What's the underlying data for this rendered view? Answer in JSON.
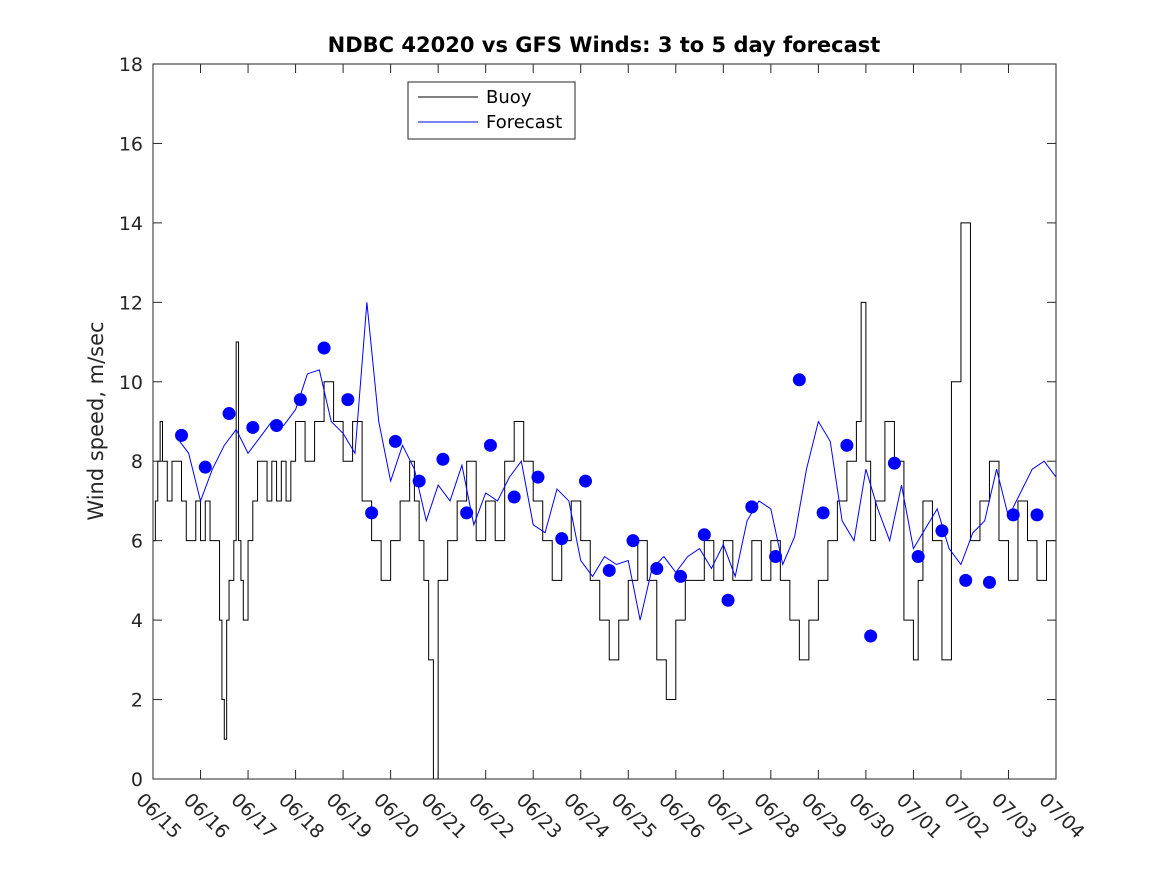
{
  "chart_data": {
    "type": "line",
    "title": "NDBC 42020 vs GFS Winds: 3 to 5 day forecast",
    "xlabel": "",
    "ylabel": "Wind speed, m/sec",
    "x_unit": "date (MM/DD)",
    "xlim": [
      "06/15",
      "07/04"
    ],
    "ylim": [
      0,
      18
    ],
    "x_ticks": [
      "06/15",
      "06/16",
      "06/17",
      "06/18",
      "06/19",
      "06/20",
      "06/21",
      "06/22",
      "06/23",
      "06/24",
      "06/25",
      "06/26",
      "06/27",
      "06/28",
      "06/29",
      "06/30",
      "07/01",
      "07/02",
      "07/03",
      "07/04"
    ],
    "y_ticks": [
      "0",
      "2",
      "4",
      "6",
      "8",
      "10",
      "12",
      "14",
      "16",
      "18"
    ],
    "grid": false,
    "legend_position": "top-center",
    "series": [
      {
        "name": "Buoy",
        "color": "#000000",
        "x_day": [
          0.0,
          0.05,
          0.1,
          0.15,
          0.2,
          0.3,
          0.4,
          0.5,
          0.6,
          0.7,
          0.8,
          0.9,
          1.0,
          1.1,
          1.2,
          1.3,
          1.4,
          1.45,
          1.5,
          1.55,
          1.6,
          1.7,
          1.75,
          1.8,
          1.85,
          1.9,
          2.0,
          2.1,
          2.2,
          2.3,
          2.4,
          2.5,
          2.6,
          2.7,
          2.8,
          2.9,
          3.0,
          3.2,
          3.4,
          3.6,
          3.8,
          4.0,
          4.2,
          4.4,
          4.6,
          4.8,
          5.0,
          5.2,
          5.4,
          5.5,
          5.6,
          5.7,
          5.8,
          5.9,
          6.0,
          6.2,
          6.4,
          6.6,
          6.8,
          7.0,
          7.2,
          7.4,
          7.6,
          7.8,
          8.0,
          8.2,
          8.4,
          8.6,
          8.8,
          9.0,
          9.2,
          9.4,
          9.6,
          9.8,
          10.0,
          10.2,
          10.4,
          10.6,
          10.8,
          11.0,
          11.2,
          11.4,
          11.6,
          11.8,
          12.0,
          12.2,
          12.4,
          12.6,
          12.8,
          13.0,
          13.2,
          13.4,
          13.6,
          13.8,
          14.0,
          14.2,
          14.4,
          14.6,
          14.8,
          14.9,
          15.0,
          15.1,
          15.2,
          15.4,
          15.6,
          15.8,
          16.0,
          16.1,
          16.2,
          16.4,
          16.6,
          16.8,
          17.0,
          17.2,
          17.4,
          17.6,
          17.8,
          18.0,
          18.2,
          18.4,
          18.6,
          18.8,
          19.0
        ],
        "y": [
          6,
          7,
          8,
          9,
          8,
          7,
          8,
          8,
          7,
          6,
          6,
          7,
          6,
          7,
          6,
          6,
          4,
          2,
          1,
          4,
          5,
          6,
          11,
          6,
          5,
          4,
          6,
          7,
          8,
          8,
          7,
          8,
          7,
          8,
          7,
          8,
          9,
          8,
          9,
          10,
          9,
          8,
          9,
          7,
          6,
          5,
          6,
          7,
          8,
          7,
          6,
          5,
          3,
          0,
          5,
          6,
          7,
          8,
          6,
          7,
          6,
          8,
          9,
          8,
          7,
          6,
          5,
          6,
          7,
          6,
          5,
          4,
          3,
          4,
          5,
          6,
          5,
          3,
          2,
          4,
          5,
          5,
          6,
          5,
          6,
          5,
          5,
          6,
          5,
          6,
          5,
          4,
          3,
          4,
          5,
          6,
          7,
          8,
          9,
          12,
          8,
          6,
          7,
          9,
          8,
          4,
          3,
          5,
          7,
          6,
          3,
          10,
          14,
          6,
          7,
          8,
          6,
          5,
          7,
          6,
          5,
          6,
          7
        ],
        "values": [
          6,
          7,
          8,
          9,
          8,
          7,
          8,
          8,
          7,
          6,
          6,
          7,
          6,
          7,
          6,
          6,
          4,
          2,
          1,
          4,
          5,
          6,
          11,
          6,
          5,
          4,
          6,
          7,
          8,
          8,
          7,
          8,
          7,
          8,
          7,
          8,
          9,
          8,
          9,
          10,
          9,
          8,
          9,
          7,
          6,
          5,
          6,
          7,
          8,
          7,
          6,
          5,
          3,
          0,
          5,
          6,
          7,
          8,
          6,
          7,
          6,
          8,
          9,
          8,
          7,
          6,
          5,
          6,
          7,
          6,
          5,
          4,
          3,
          4,
          5,
          6,
          5,
          3,
          2,
          4,
          5,
          5,
          6,
          5,
          6,
          5,
          5,
          6,
          5,
          6,
          5,
          4,
          3,
          4,
          5,
          6,
          7,
          8,
          9,
          12,
          8,
          6,
          7,
          9,
          8,
          4,
          3,
          5,
          7,
          6,
          3,
          10,
          14,
          6,
          7,
          8,
          6,
          5,
          7,
          6,
          5,
          6,
          7
        ]
      },
      {
        "name": "Forecast",
        "color": "#0000ff",
        "x_day": [
          0.5,
          0.75,
          1.0,
          1.25,
          1.5,
          1.75,
          2.0,
          2.25,
          2.5,
          2.75,
          3.0,
          3.25,
          3.5,
          3.75,
          4.0,
          4.25,
          4.5,
          4.75,
          5.0,
          5.25,
          5.5,
          5.75,
          6.0,
          6.25,
          6.5,
          6.75,
          7.0,
          7.25,
          7.5,
          7.75,
          8.0,
          8.25,
          8.5,
          8.75,
          9.0,
          9.25,
          9.5,
          9.75,
          10.0,
          10.25,
          10.5,
          10.75,
          11.0,
          11.25,
          11.5,
          11.75,
          12.0,
          12.25,
          12.5,
          12.75,
          13.0,
          13.25,
          13.5,
          13.75,
          14.0,
          14.25,
          14.5,
          14.75,
          15.0,
          15.25,
          15.5,
          15.75,
          16.0,
          16.25,
          16.5,
          16.75,
          17.0,
          17.25,
          17.5,
          17.75,
          18.0,
          18.25,
          18.5,
          18.75,
          19.0
        ],
        "y": [
          8.6,
          8.2,
          7.0,
          7.8,
          8.4,
          8.8,
          8.2,
          8.6,
          9.0,
          8.9,
          9.3,
          10.2,
          10.3,
          9.0,
          8.7,
          8.2,
          12.0,
          9.0,
          7.5,
          8.4,
          7.8,
          6.5,
          7.4,
          7.0,
          7.9,
          6.4,
          7.2,
          7.0,
          7.6,
          8.0,
          6.4,
          6.2,
          7.3,
          7.0,
          5.5,
          5.1,
          5.6,
          5.4,
          5.5,
          4.0,
          5.3,
          5.6,
          5.2,
          5.6,
          5.8,
          5.3,
          5.9,
          5.1,
          6.5,
          7.0,
          6.8,
          5.4,
          6.1,
          7.8,
          9.0,
          8.5,
          6.5,
          6.0,
          7.8,
          6.8,
          6.0,
          7.4,
          5.8,
          6.3,
          6.8,
          5.8,
          5.4,
          6.2,
          6.5,
          7.8,
          6.6,
          7.2,
          7.8,
          8.0,
          7.6
        ],
        "values": [
          8.6,
          8.2,
          7.0,
          7.8,
          8.4,
          8.8,
          8.2,
          8.6,
          9.0,
          8.9,
          9.3,
          10.2,
          10.3,
          9.0,
          8.7,
          8.2,
          12.0,
          9.0,
          7.5,
          8.4,
          7.8,
          6.5,
          7.4,
          7.0,
          7.9,
          6.4,
          7.2,
          7.0,
          7.6,
          8.0,
          6.4,
          6.2,
          7.3,
          7.0,
          5.5,
          5.1,
          5.6,
          5.4,
          5.5,
          4.0,
          5.3,
          5.6,
          5.2,
          5.6,
          5.8,
          5.3,
          5.9,
          5.1,
          6.5,
          7.0,
          6.8,
          5.4,
          6.1,
          7.8,
          9.0,
          8.5,
          6.5,
          6.0,
          7.8,
          6.8,
          6.0,
          7.4,
          5.8,
          6.3,
          6.8,
          5.8,
          5.4,
          6.2,
          6.5,
          7.8,
          6.6,
          7.2,
          7.8,
          8.0,
          7.6
        ]
      }
    ],
    "forecast_markers": {
      "color": "#0000ff",
      "x_day": [
        0.6,
        1.1,
        1.6,
        2.1,
        2.6,
        3.1,
        3.6,
        4.1,
        4.6,
        5.1,
        5.6,
        6.1,
        6.6,
        7.1,
        7.6,
        8.1,
        8.6,
        9.1,
        9.6,
        10.1,
        10.6,
        11.1,
        11.6,
        12.1,
        12.6,
        13.1,
        13.6,
        14.1,
        14.6,
        15.1,
        15.6,
        16.1,
        16.6,
        17.1,
        17.6,
        18.1,
        18.6
      ],
      "y": [
        8.65,
        7.85,
        9.2,
        8.85,
        8.9,
        9.55,
        10.85,
        9.55,
        6.7,
        8.5,
        7.5,
        8.05,
        6.7,
        8.4,
        7.1,
        7.6,
        6.05,
        7.5,
        5.25,
        6.0,
        5.3,
        5.1,
        6.15,
        4.5,
        6.85,
        5.6,
        10.05,
        6.7,
        8.4,
        3.6,
        7.95,
        5.6,
        6.25,
        5.0,
        4.95,
        6.65,
        6.65
      ]
    }
  }
}
